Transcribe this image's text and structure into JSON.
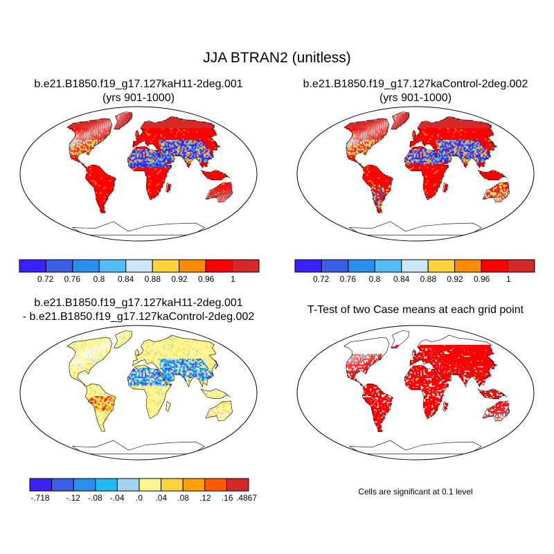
{
  "title": "JJA BTRAN2 (unitless)",
  "panels": [
    {
      "title_line1": "b.e21.B1850.f19_g17.127kaH11-2deg.001",
      "title_line2": "(yrs 901-1000)"
    },
    {
      "title_line1": "b.e21.B1850.f19_g17.127kaControl-2deg.002",
      "title_line2": "(yrs 901-1000)"
    },
    {
      "title_line1": "b.e21.B1850.f19_g17.127kaH11-2deg.001",
      "title_line2": "- b.e21.B1850.f19_g17.127kaControl-2deg.002"
    },
    {
      "title_line1": "T-Test of two Case means at each grid point",
      "title_line2": ""
    }
  ],
  "colorbar_top": {
    "colors": [
      "#3d1eff",
      "#3a5fe6",
      "#2a8eef",
      "#53bff5",
      "#cce8f6",
      "#ffd23e",
      "#ff8c00",
      "#ff0000",
      "#d62a2a"
    ],
    "labels": [
      "0.72",
      "0.76",
      "0.8",
      "0.84",
      "0.88",
      "0.92",
      "0.96",
      "1"
    ]
  },
  "colorbar_diff": {
    "colors": [
      "#3d1eff",
      "#3a5fe6",
      "#2a8eef",
      "#1fbcf0",
      "#a3d3ef",
      "#fbf592",
      "#ffd23e",
      "#ffa200",
      "#ff5a00",
      "#d62a2a"
    ],
    "labels": [
      "-.718",
      "-.12",
      "-.08",
      "-.04",
      ".0",
      ".04",
      ".08",
      ".12",
      ".16",
      ".4867"
    ]
  },
  "significance_note": "Cells are significant at 0.1 level",
  "significance_color": "#ff0000"
}
